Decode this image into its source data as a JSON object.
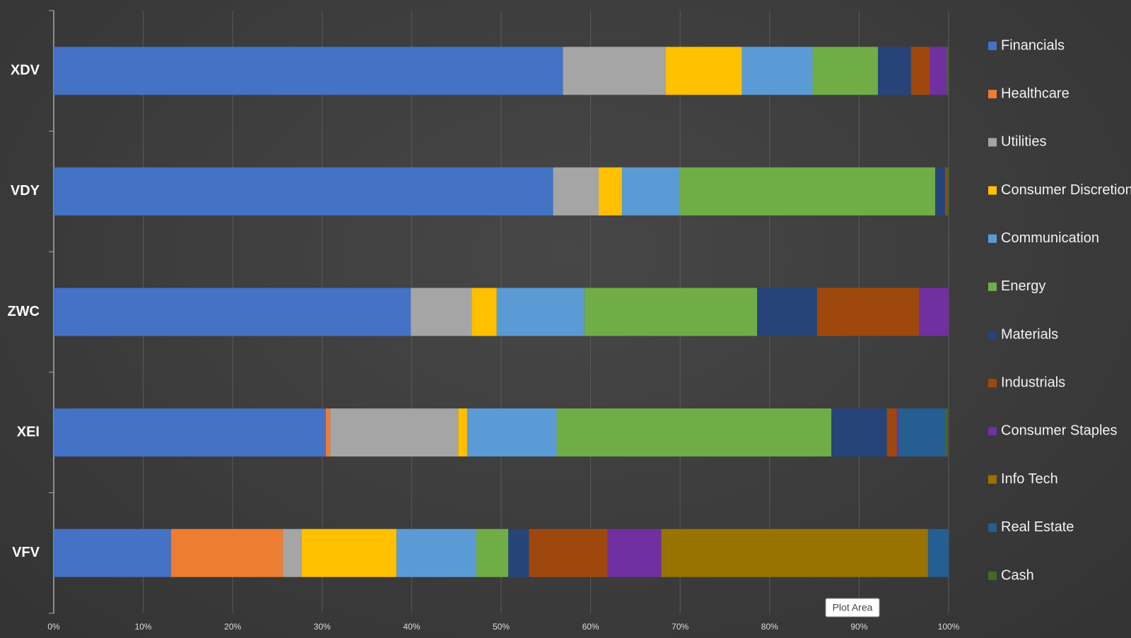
{
  "chart_data": {
    "type": "stacked-bar-horizontal",
    "categories": [
      "XDV",
      "VDY",
      "ZWC",
      "XEI",
      "VFV"
    ],
    "series": [
      {
        "name": "Financials",
        "color": "#4472c4",
        "values": [
          56.9,
          55.8,
          39.9,
          30.4,
          13.1
        ]
      },
      {
        "name": "Healthcare",
        "color": "#ed7d31",
        "values": [
          0,
          0,
          0,
          0.5,
          12.5
        ]
      },
      {
        "name": "Utilities",
        "color": "#a5a5a5",
        "values": [
          11.5,
          5.1,
          6.8,
          14.3,
          2.1
        ]
      },
      {
        "name": "Consumer Discretionary",
        "color": "#ffc000",
        "values": [
          8.5,
          2.6,
          2.8,
          1.0,
          10.6
        ]
      },
      {
        "name": "Communication",
        "color": "#5b9bd5",
        "values": [
          7.9,
          6.4,
          9.8,
          10.0,
          8.9
        ]
      },
      {
        "name": "Energy",
        "color": "#70ad47",
        "values": [
          7.3,
          28.6,
          19.3,
          30.7,
          3.6
        ]
      },
      {
        "name": "Materials",
        "color": "#264478",
        "values": [
          3.7,
          1.1,
          6.7,
          6.2,
          2.3
        ]
      },
      {
        "name": "Industrials",
        "color": "#9e480e",
        "values": [
          2.1,
          0.2,
          11.4,
          1.1,
          8.8
        ]
      },
      {
        "name": "Consumer Staples",
        "color": "#7030a0",
        "values": [
          1.9,
          0,
          3.3,
          0.2,
          6.0
        ]
      },
      {
        "name": "Info Tech",
        "color": "#997300",
        "values": [
          0,
          0,
          0,
          0,
          29.8
        ]
      },
      {
        "name": "Real Estate",
        "color": "#255e91",
        "values": [
          0,
          0,
          0,
          5.2,
          2.3
        ]
      },
      {
        "name": "Cash",
        "color": "#43682b",
        "values": [
          0.2,
          0.2,
          0,
          0.3,
          0
        ]
      }
    ],
    "xlim": [
      0,
      100
    ],
    "xticks": [
      {
        "value": 0,
        "label": "0%"
      },
      {
        "value": 10,
        "label": "10%"
      },
      {
        "value": 20,
        "label": "20%"
      },
      {
        "value": 30,
        "label": "30%"
      },
      {
        "value": 40,
        "label": "40%"
      },
      {
        "value": 50,
        "label": "50%"
      },
      {
        "value": 60,
        "label": "60%"
      },
      {
        "value": 70,
        "label": "70%"
      },
      {
        "value": 80,
        "label": "80%"
      },
      {
        "value": 90,
        "label": "90%"
      },
      {
        "value": 100,
        "label": "100%"
      }
    ],
    "grid": true,
    "legend": "right",
    "tooltip": "Plot Area"
  }
}
